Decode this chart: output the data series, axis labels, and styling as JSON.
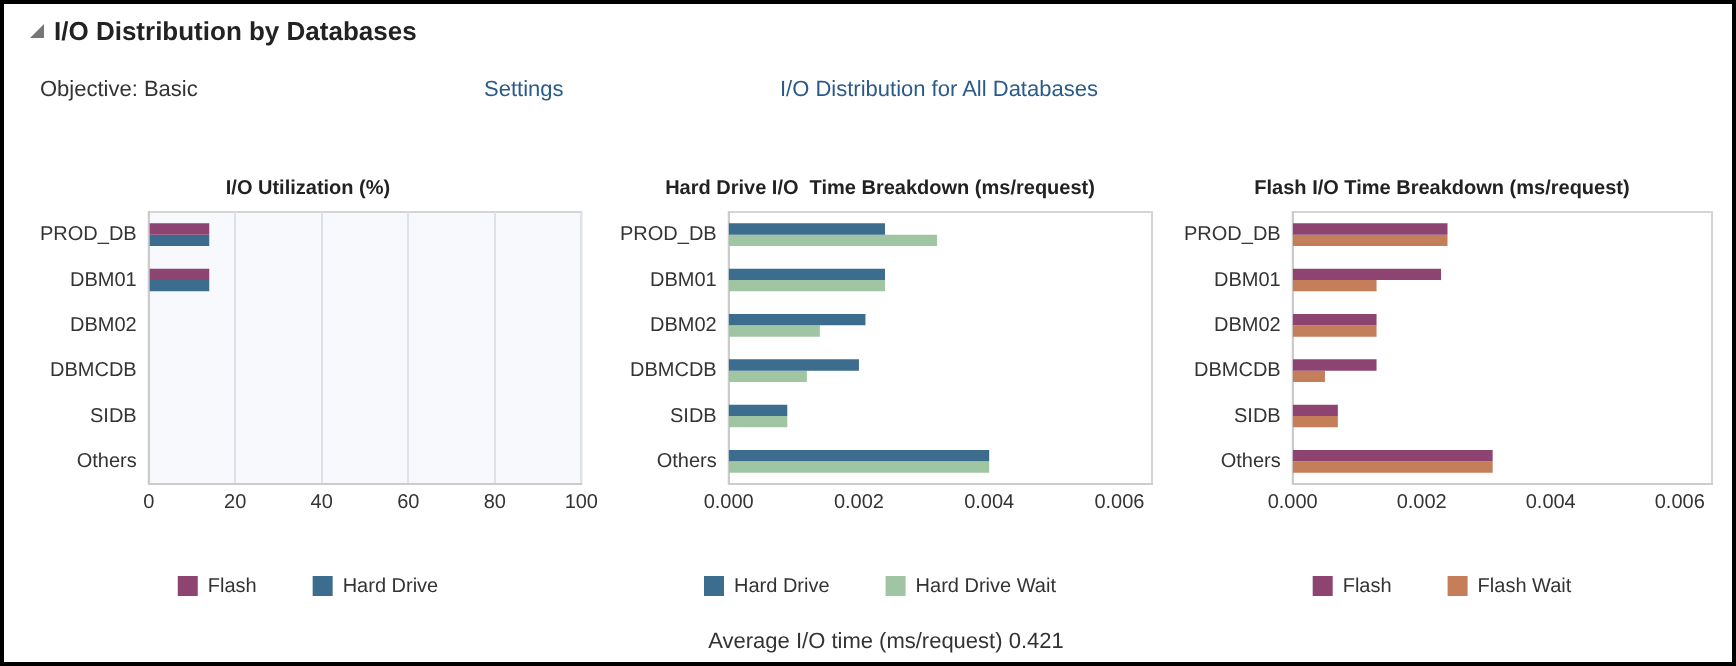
{
  "chart_data": [
    {
      "type": "other",
      "title": "I/O Distribution by Databases",
      "annotations": [
        "Objective:  Basic",
        "Settings",
        "I/O Distribution for All Databases"
      ]
    },
    {
      "type": "bar",
      "orientation": "horizontal",
      "title": "I/O Utilization (%)",
      "categories": [
        "PROD_DB",
        "DBM01",
        "DBM02",
        "DBMCDB",
        "SIDB",
        "Others"
      ],
      "series": [
        {
          "name": "Flash",
          "color": "#8e4471",
          "values": [
            14,
            14,
            0,
            0,
            0,
            0
          ]
        },
        {
          "name": "Hard Drive",
          "color": "#3d6d8e",
          "values": [
            14,
            14,
            0,
            0,
            0,
            0
          ]
        }
      ],
      "xlim": [
        0,
        100
      ],
      "xticks": [
        0,
        20,
        40,
        60,
        80,
        100
      ],
      "grid": "x",
      "legend": "bottom"
    },
    {
      "type": "bar",
      "orientation": "horizontal",
      "title": "Hard Drive I/O  Time Breakdown (ms/request)",
      "categories": [
        "PROD_DB",
        "DBM01",
        "DBM02",
        "DBMCDB",
        "SIDB",
        "Others"
      ],
      "series": [
        {
          "name": "Hard Drive",
          "color": "#3d6d8e",
          "values": [
            0.0024,
            0.0024,
            0.0021,
            0.002,
            0.0009,
            0.004
          ]
        },
        {
          "name": "Hard Drive Wait",
          "color": "#9fc5a2",
          "values": [
            0.0032,
            0.0024,
            0.0014,
            0.0012,
            0.0009,
            0.004
          ]
        }
      ],
      "xlim": [
        0,
        0.0065
      ],
      "xticks": [
        {
          "value": 0,
          "label": "0.000"
        },
        {
          "value": 0.002,
          "label": "0.002"
        },
        {
          "value": 0.004,
          "label": "0.004"
        },
        {
          "value": 0.006,
          "label": "0.006"
        }
      ],
      "legend": "bottom",
      "annotations": [
        "Average I/O time (ms/request)  0.421"
      ]
    },
    {
      "type": "bar",
      "orientation": "horizontal",
      "title": "Flash I/O Time Breakdown (ms/request)",
      "categories": [
        "PROD_DB",
        "DBM01",
        "DBM02",
        "DBMCDB",
        "SIDB",
        "Others"
      ],
      "series": [
        {
          "name": "Flash",
          "color": "#8e4471",
          "values": [
            0.0024,
            0.0023,
            0.0013,
            0.0013,
            0.0007,
            0.0031
          ]
        },
        {
          "name": "Flash Wait",
          "color": "#c47f5a",
          "values": [
            0.0024,
            0.0013,
            0.0013,
            0.0005,
            0.0007,
            0.0031
          ]
        }
      ],
      "xlim": [
        0,
        0.0065
      ],
      "xticks": [
        {
          "value": 0,
          "label": "0.000"
        },
        {
          "value": 0.002,
          "label": "0.002"
        },
        {
          "value": 0.004,
          "label": "0.004"
        },
        {
          "value": 0.006,
          "label": "0.006"
        }
      ],
      "legend": "bottom"
    }
  ]
}
